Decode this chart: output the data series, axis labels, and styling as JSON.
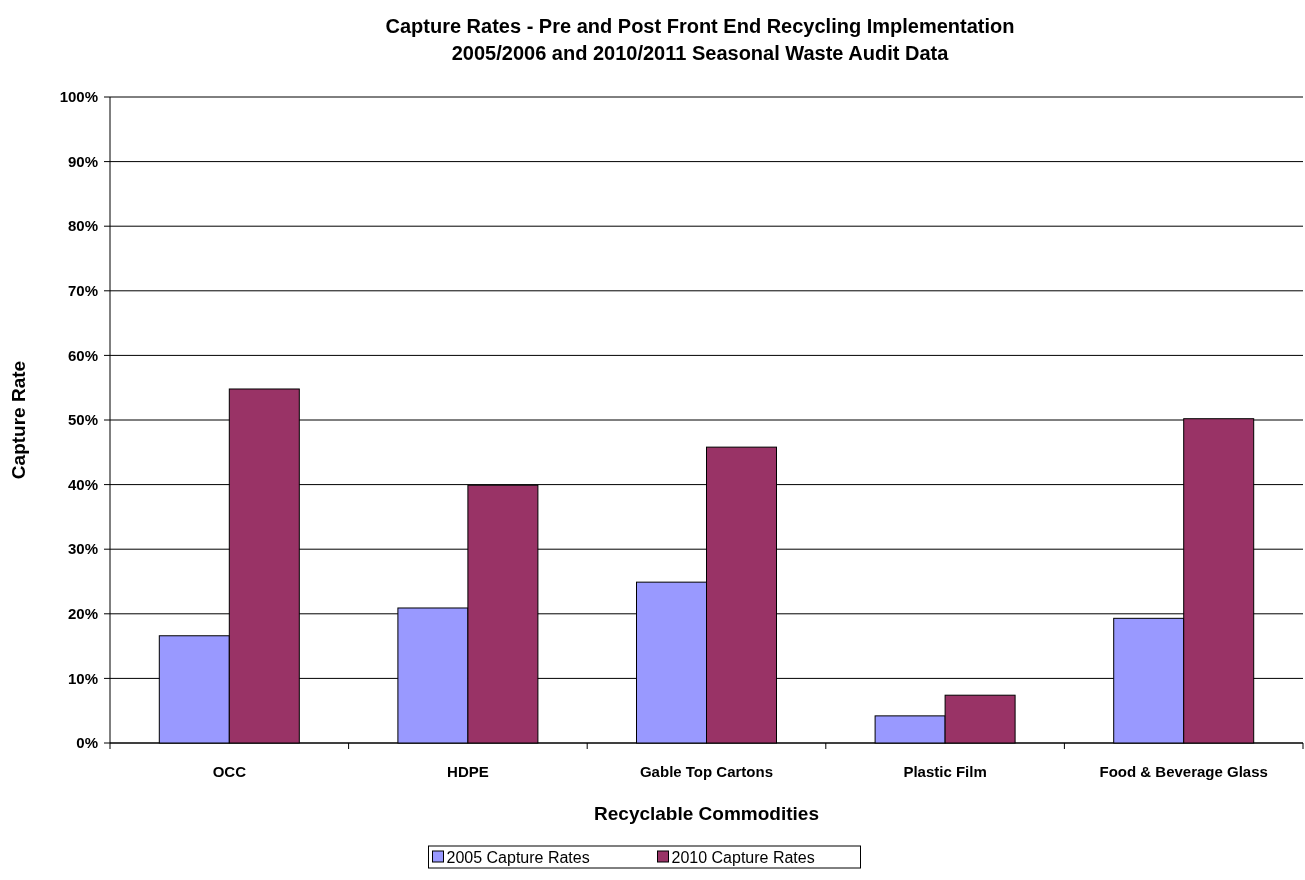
{
  "chart_data": {
    "type": "bar",
    "title": "Capture Rates - Pre and Post Front End Recycling Implementation\n2005/2006 and 2010/2011 Seasonal Waste Audit Data",
    "xlabel": "Recyclable Commodities",
    "ylabel": "Capture Rate",
    "categories": [
      "OCC",
      "HDPE",
      "Gable Top Cartons",
      "Plastic Film",
      "Food & Beverage Glass"
    ],
    "series": [
      {
        "name": "2005 Capture Rates",
        "color": "#9999ff",
        "values": [
          16.6,
          20.9,
          24.9,
          4.2,
          19.3
        ]
      },
      {
        "name": "2010 Capture Rates",
        "color": "#993366",
        "values": [
          54.8,
          39.9,
          45.8,
          7.4,
          50.2
        ]
      }
    ],
    "ylim": [
      0,
      100
    ],
    "yticks": [
      {
        "value": 0,
        "label": "0%"
      },
      {
        "value": 10,
        "label": "10%"
      },
      {
        "value": 20,
        "label": "20%"
      },
      {
        "value": 30,
        "label": "30%"
      },
      {
        "value": 40,
        "label": "40%"
      },
      {
        "value": 50,
        "label": "50%"
      },
      {
        "value": 60,
        "label": "60%"
      },
      {
        "value": 70,
        "label": "70%"
      },
      {
        "value": 80,
        "label": "80%"
      },
      {
        "value": 90,
        "label": "90%"
      },
      {
        "value": 100,
        "label": "100%"
      }
    ],
    "grid": "y",
    "legend": "bottom"
  }
}
